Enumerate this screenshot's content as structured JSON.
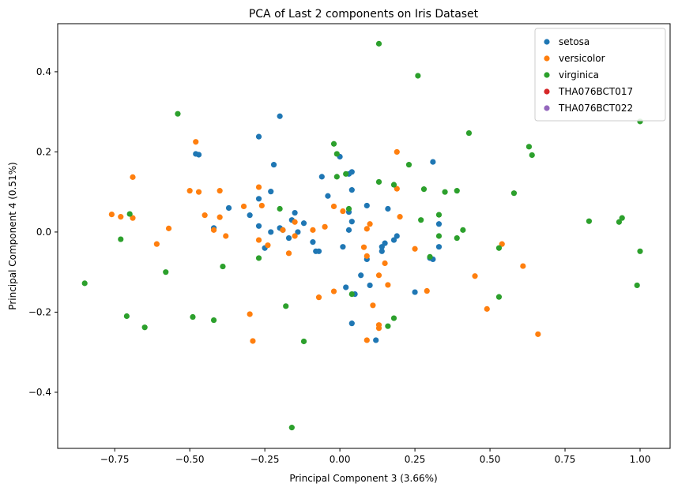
{
  "chart_data": {
    "type": "scatter",
    "title": "PCA of Last 2 components on  Iris Dataset",
    "xlabel": "Principal Component 3 (3.66%)",
    "ylabel": "Principal Component 4 (0.51%)",
    "xlim": [
      -0.94,
      1.1
    ],
    "ylim": [
      -0.54,
      0.52
    ],
    "xticks": [
      -0.75,
      -0.5,
      -0.25,
      0.0,
      0.25,
      0.5,
      0.75,
      1.0
    ],
    "xtick_labels": [
      "−0.75",
      "−0.50",
      "−0.25",
      "0.00",
      "0.25",
      "0.50",
      "0.75",
      "1.00"
    ],
    "yticks": [
      -0.4,
      -0.2,
      0.0,
      0.2,
      0.4
    ],
    "ytick_labels": [
      "−0.4",
      "−0.2",
      "0.0",
      "0.2",
      "0.4"
    ],
    "grid": false,
    "legend_position": "top-right",
    "series": [
      {
        "name": "setosa",
        "color": "#1f77b4",
        "points": [
          [
            -0.48,
            0.195
          ],
          [
            -0.47,
            0.193
          ],
          [
            -0.27,
            0.238
          ],
          [
            -0.2,
            0.289
          ],
          [
            -0.22,
            0.168
          ],
          [
            -0.37,
            0.06
          ],
          [
            -0.42,
            0.01
          ],
          [
            -0.3,
            0.042
          ],
          [
            -0.27,
            0.015
          ],
          [
            -0.27,
            0.083
          ],
          [
            -0.23,
            0.101
          ],
          [
            -0.25,
            -0.04
          ],
          [
            -0.23,
            0.0
          ],
          [
            -0.2,
            0.01
          ],
          [
            -0.19,
            0.005
          ],
          [
            -0.16,
            0.03
          ],
          [
            -0.15,
            0.048
          ],
          [
            -0.17,
            -0.015
          ],
          [
            -0.12,
            0.022
          ],
          [
            -0.14,
            0.0
          ],
          [
            -0.09,
            -0.025
          ],
          [
            -0.08,
            -0.048
          ],
          [
            -0.07,
            -0.048
          ],
          [
            -0.06,
            0.138
          ],
          [
            -0.04,
            0.09
          ],
          [
            0.0,
            0.188
          ],
          [
            0.03,
            0.145
          ],
          [
            0.04,
            0.15
          ],
          [
            0.04,
            0.105
          ],
          [
            0.03,
            0.05
          ],
          [
            0.04,
            0.026
          ],
          [
            0.03,
            0.005
          ],
          [
            0.01,
            -0.037
          ],
          [
            0.02,
            -0.138
          ],
          [
            0.05,
            -0.155
          ],
          [
            0.07,
            -0.108
          ],
          [
            0.09,
            0.066
          ],
          [
            0.09,
            -0.068
          ],
          [
            0.1,
            -0.133
          ],
          [
            0.04,
            -0.228
          ],
          [
            0.12,
            -0.27
          ],
          [
            0.14,
            -0.037
          ],
          [
            0.14,
            -0.048
          ],
          [
            0.15,
            -0.028
          ],
          [
            0.16,
            0.058
          ],
          [
            0.18,
            -0.02
          ],
          [
            0.19,
            -0.01
          ],
          [
            0.25,
            -0.15
          ],
          [
            0.31,
            0.175
          ],
          [
            0.3,
            -0.065
          ],
          [
            0.31,
            -0.068
          ],
          [
            0.33,
            0.02
          ],
          [
            0.33,
            -0.037
          ]
        ]
      },
      {
        "name": "versicolor",
        "color": "#ff7f0e",
        "points": [
          [
            -0.76,
            0.044
          ],
          [
            -0.73,
            0.038
          ],
          [
            -0.69,
            0.137
          ],
          [
            -0.69,
            0.035
          ],
          [
            -0.61,
            -0.03
          ],
          [
            -0.57,
            0.009
          ],
          [
            -0.5,
            0.103
          ],
          [
            -0.48,
            0.225
          ],
          [
            -0.47,
            0.1
          ],
          [
            -0.45,
            0.042
          ],
          [
            -0.42,
            0.005
          ],
          [
            -0.4,
            0.103
          ],
          [
            -0.4,
            0.037
          ],
          [
            -0.38,
            -0.01
          ],
          [
            -0.32,
            0.064
          ],
          [
            -0.3,
            -0.205
          ],
          [
            -0.29,
            -0.272
          ],
          [
            -0.27,
            0.112
          ],
          [
            -0.26,
            0.066
          ],
          [
            -0.27,
            -0.02
          ],
          [
            -0.24,
            -0.033
          ],
          [
            -0.19,
            0.005
          ],
          [
            -0.17,
            -0.053
          ],
          [
            -0.15,
            0.025
          ],
          [
            -0.15,
            -0.01
          ],
          [
            -0.09,
            0.005
          ],
          [
            -0.07,
            -0.163
          ],
          [
            -0.05,
            0.013
          ],
          [
            -0.02,
            0.064
          ],
          [
            -0.02,
            -0.148
          ],
          [
            0.01,
            0.052
          ],
          [
            0.08,
            -0.038
          ],
          [
            0.09,
            0.008
          ],
          [
            0.09,
            -0.06
          ],
          [
            0.09,
            -0.27
          ],
          [
            0.1,
            0.02
          ],
          [
            0.11,
            -0.183
          ],
          [
            0.13,
            -0.24
          ],
          [
            0.13,
            -0.232
          ],
          [
            0.13,
            -0.108
          ],
          [
            0.15,
            -0.078
          ],
          [
            0.16,
            -0.132
          ],
          [
            0.19,
            0.2
          ],
          [
            0.19,
            0.108
          ],
          [
            0.2,
            0.038
          ],
          [
            0.25,
            -0.042
          ],
          [
            0.29,
            -0.147
          ],
          [
            0.45,
            -0.11
          ],
          [
            0.49,
            -0.192
          ],
          [
            0.54,
            -0.03
          ],
          [
            0.61,
            -0.085
          ],
          [
            0.66,
            -0.255
          ]
        ]
      },
      {
        "name": "virginica",
        "color": "#2ca02c",
        "points": [
          [
            -0.85,
            -0.128
          ],
          [
            -0.73,
            -0.018
          ],
          [
            -0.71,
            -0.21
          ],
          [
            -0.7,
            0.045
          ],
          [
            -0.65,
            -0.238
          ],
          [
            -0.58,
            -0.1
          ],
          [
            -0.54,
            0.295
          ],
          [
            -0.49,
            -0.212
          ],
          [
            -0.42,
            -0.22
          ],
          [
            -0.39,
            -0.086
          ],
          [
            -0.27,
            -0.065
          ],
          [
            -0.2,
            0.058
          ],
          [
            -0.18,
            -0.185
          ],
          [
            -0.16,
            -0.488
          ],
          [
            -0.12,
            -0.273
          ],
          [
            -0.02,
            0.22
          ],
          [
            -0.01,
            0.195
          ],
          [
            -0.01,
            0.138
          ],
          [
            0.02,
            0.145
          ],
          [
            0.03,
            0.058
          ],
          [
            0.04,
            -0.155
          ],
          [
            0.13,
            0.47
          ],
          [
            0.13,
            0.125
          ],
          [
            0.16,
            -0.235
          ],
          [
            0.18,
            0.118
          ],
          [
            0.18,
            -0.215
          ],
          [
            0.23,
            0.168
          ],
          [
            0.26,
            0.39
          ],
          [
            0.27,
            0.03
          ],
          [
            0.28,
            0.107
          ],
          [
            0.3,
            -0.062
          ],
          [
            0.33,
            0.043
          ],
          [
            0.33,
            -0.01
          ],
          [
            0.35,
            0.1
          ],
          [
            0.39,
            0.103
          ],
          [
            0.39,
            -0.015
          ],
          [
            0.41,
            0.005
          ],
          [
            0.43,
            0.247
          ],
          [
            0.53,
            -0.04
          ],
          [
            0.53,
            -0.162
          ],
          [
            0.58,
            0.097
          ],
          [
            0.63,
            0.213
          ],
          [
            0.64,
            0.192
          ],
          [
            0.83,
            0.027
          ],
          [
            0.93,
            0.025
          ],
          [
            0.94,
            0.035
          ],
          [
            0.99,
            -0.133
          ],
          [
            1.0,
            0.276
          ],
          [
            1.0,
            -0.048
          ]
        ]
      },
      {
        "name": "THA076BCT017",
        "color": "#d62728",
        "points": []
      },
      {
        "name": "THA076BCT022",
        "color": "#9467bd",
        "points": []
      }
    ]
  }
}
